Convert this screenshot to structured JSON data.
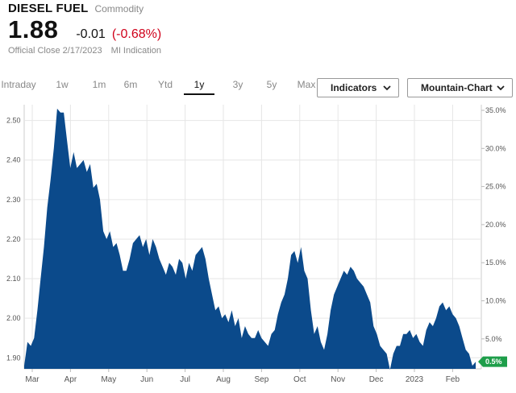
{
  "header": {
    "title": "DIESEL FUEL",
    "subtitle": "Commodity",
    "price": "1.88",
    "change": "-0.01",
    "change_pct": "(-0.68%)",
    "close_label": "Official Close 2/17/2023",
    "indication": "MI Indication"
  },
  "toolbar": {
    "tabs": [
      {
        "label": "Intraday"
      },
      {
        "label": "1w"
      },
      {
        "label": "1m"
      },
      {
        "label": "6m"
      },
      {
        "label": "Ytd"
      },
      {
        "label": "1y"
      },
      {
        "label": "3y"
      },
      {
        "label": "5y"
      },
      {
        "label": "Max"
      }
    ],
    "active_tab": "1y",
    "indicators_label": "Indicators",
    "chart_type_label": "Mountain-Chart"
  },
  "colors": {
    "area_fill": "#0b4a8b",
    "negative": "#d0021b",
    "current_badge": "#1e9e4a",
    "grid": "#e6e6e6"
  },
  "chart_data": {
    "type": "area",
    "title": "",
    "xlabel": "",
    "ylabel": "",
    "x_tick_labels": [
      "Mar",
      "Apr",
      "May",
      "Jun",
      "Jul",
      "Aug",
      "Sep",
      "Oct",
      "Nov",
      "Dec",
      "2023",
      "Feb"
    ],
    "y_left_ticks": [
      "2.50",
      "2.40",
      "2.30",
      "2.20",
      "2.10",
      "2.00",
      "1.90"
    ],
    "y_right_ticks": [
      "35.0%",
      "30.0%",
      "25.0%",
      "20.0%",
      "15.0%",
      "10.0%",
      "5.0%"
    ],
    "ylim_left": [
      1.872,
      2.54
    ],
    "current_label": "0.5%",
    "grid": true,
    "series": [
      {
        "values": [
          1.88,
          1.94,
          1.93,
          1.95,
          2.02,
          2.1,
          2.18,
          2.28,
          2.35,
          2.43,
          2.53,
          2.52,
          2.52,
          2.45,
          2.38,
          2.42,
          2.38,
          2.39,
          2.4,
          2.37,
          2.39,
          2.33,
          2.34,
          2.3,
          2.22,
          2.2,
          2.22,
          2.18,
          2.19,
          2.16,
          2.12,
          2.12,
          2.15,
          2.19,
          2.2,
          2.21,
          2.18,
          2.2,
          2.16,
          2.2,
          2.18,
          2.15,
          2.13,
          2.11,
          2.14,
          2.13,
          2.11,
          2.15,
          2.14,
          2.1,
          2.14,
          2.12,
          2.16,
          2.17,
          2.18,
          2.15,
          2.1,
          2.06,
          2.02,
          2.03,
          2.0,
          2.01,
          1.99,
          2.02,
          1.98,
          2.0,
          1.95,
          1.98,
          1.96,
          1.95,
          1.95,
          1.97,
          1.95,
          1.94,
          1.93,
          1.96,
          1.97,
          2.01,
          2.04,
          2.06,
          2.1,
          2.16,
          2.17,
          2.14,
          2.18,
          2.12,
          2.1,
          2.02,
          1.96,
          1.98,
          1.94,
          1.92,
          1.96,
          2.02,
          2.06,
          2.08,
          2.1,
          2.12,
          2.11,
          2.13,
          2.12,
          2.1,
          2.09,
          2.08,
          2.06,
          2.04,
          1.98,
          1.96,
          1.93,
          1.92,
          1.91,
          1.87,
          1.91,
          1.93,
          1.93,
          1.96,
          1.96,
          1.97,
          1.95,
          1.96,
          1.94,
          1.93,
          1.97,
          1.99,
          1.98,
          2.0,
          2.03,
          2.04,
          2.02,
          2.03,
          2.01,
          2.0,
          1.98,
          1.95,
          1.92,
          1.91,
          1.88,
          1.89
        ]
      }
    ]
  }
}
